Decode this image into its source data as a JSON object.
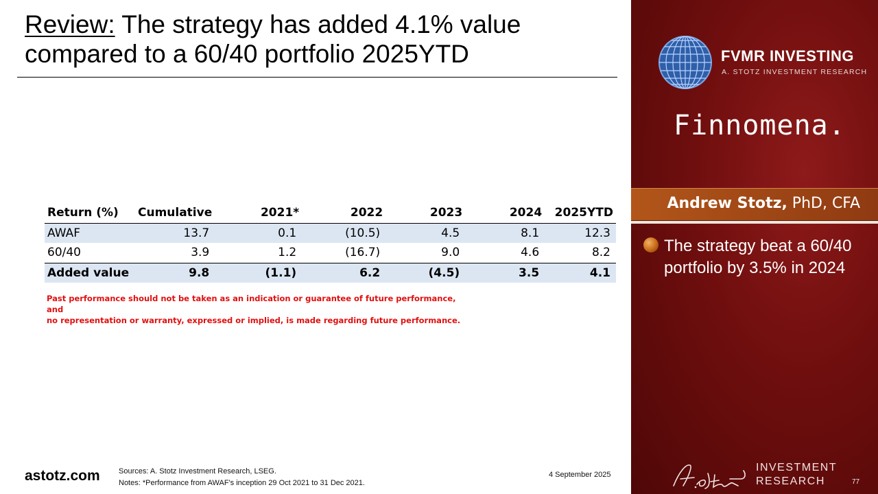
{
  "slide": {
    "title_prefix": "Review:",
    "title_rest": " The strategy has added 4.1% value compared to a 60/40 portfolio 2025YTD"
  },
  "table": {
    "headers": [
      "Return (%)",
      "Cumulative",
      "2021*",
      "2022",
      "2023",
      "2024",
      "2025YTD"
    ],
    "rows": [
      {
        "label": "AWAF",
        "values": [
          "13.7",
          "0.1",
          "(10.5)",
          "4.5",
          "8.1",
          "12.3"
        ]
      },
      {
        "label": "60/40",
        "values": [
          "3.9",
          "1.2",
          "(16.7)",
          "9.0",
          "4.6",
          "8.2"
        ]
      },
      {
        "label": "Added value",
        "values": [
          "9.8",
          "(1.1)",
          "6.2",
          "(4.5)",
          "3.5",
          "4.1"
        ]
      }
    ]
  },
  "disclaimer": {
    "line1": "Past performance should not be taken as an indication or guarantee of future performance, and",
    "line2": "no representation or warranty, expressed or implied, is made regarding future performance."
  },
  "footer": {
    "site": "astotz.com",
    "sources": "Sources: A. Stotz Investment Research, LSEG.",
    "notes": "Notes: *Performance from AWAF's inception 29 Oct 2021 to 31 Dec 2021.",
    "date": "4 September 2025",
    "page_number": "77"
  },
  "panel": {
    "brand": "FVMR INVESTING",
    "brand_sub": "A. STOTZ INVESTMENT RESEARCH",
    "partner": "Finnomena.",
    "presenter_name": "Andrew Stotz,",
    "presenter_title": " PhD, CFA",
    "bullet": "The strategy beat a 60/40 portfolio by 3.5% in 2024",
    "footer_line1": "INVESTMENT",
    "footer_line2": "RESEARCH",
    "signature_text": "A. Stotz"
  },
  "colors": {
    "panel_dark": "#4f0707",
    "panel_mid": "#8e1a1a",
    "band_orange": "#b2561a",
    "table_shade": "#dce6f2",
    "disclaimer_red": "#e01010"
  },
  "icons": [
    "globe-logo-icon",
    "bullet-orb-icon",
    "signature-icon"
  ]
}
